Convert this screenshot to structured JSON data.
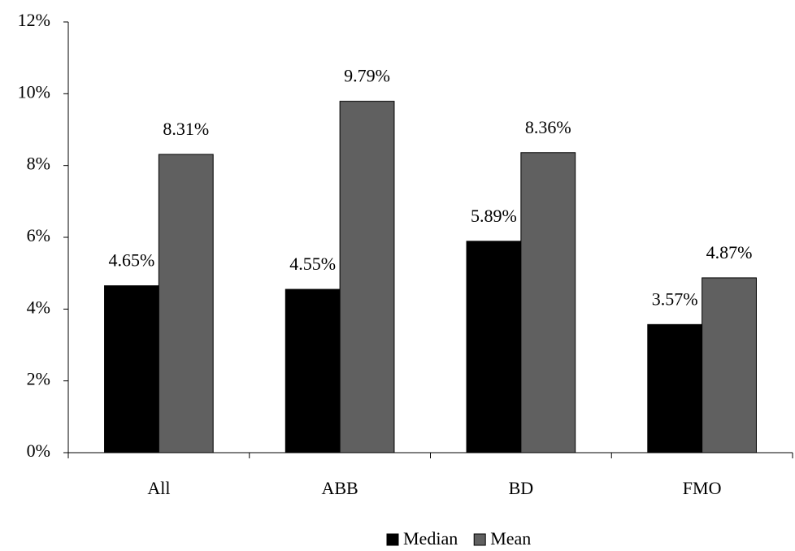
{
  "chart_data": {
    "type": "bar",
    "categories": [
      "All",
      "ABB",
      "BD",
      "FMO"
    ],
    "series": [
      {
        "name": "Median",
        "color": "#000000",
        "values": [
          4.65,
          4.55,
          5.89,
          3.57
        ],
        "value_labels": [
          "4.65%",
          "4.55%",
          "5.89%",
          "3.57%"
        ]
      },
      {
        "name": "Mean",
        "color": "#606060",
        "values": [
          8.31,
          9.79,
          8.36,
          4.87
        ],
        "value_labels": [
          "8.31%",
          "9.79%",
          "8.36%",
          "4.87%"
        ]
      }
    ],
    "ylim": [
      0,
      12
    ],
    "yticks": [
      {
        "value": 0,
        "label": "0%"
      },
      {
        "value": 2,
        "label": "2%"
      },
      {
        "value": 4,
        "label": "4%"
      },
      {
        "value": 6,
        "label": "6%"
      },
      {
        "value": 8,
        "label": "8%"
      },
      {
        "value": 10,
        "label": "10%"
      },
      {
        "value": 12,
        "label": "12%"
      }
    ],
    "grid": false,
    "legend": "bottom"
  }
}
